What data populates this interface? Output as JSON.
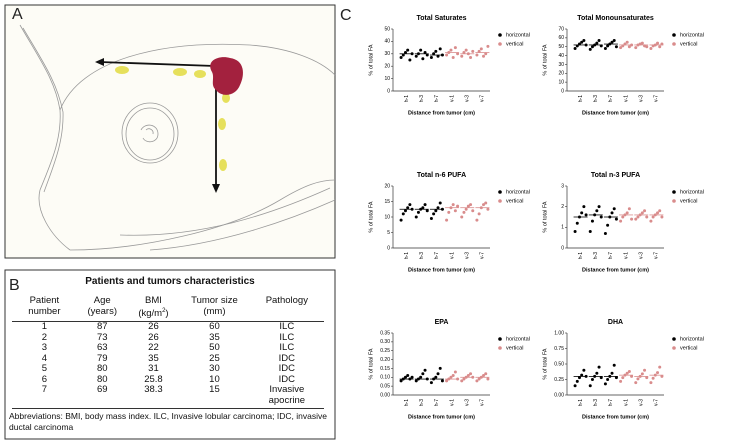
{
  "panel_labels": {
    "a": "A",
    "b": "B",
    "c": "C"
  },
  "table": {
    "title": "Patients and tumors characteristics",
    "header": [
      "Patient number",
      "Age (years)",
      {
        "text": "BMI (kg/m",
        "sup": "2",
        "after": ")"
      },
      "Tumor size (mm)",
      "Pathology"
    ],
    "rows": [
      [
        "1",
        "87",
        "26",
        "60",
        "ILC"
      ],
      [
        "2",
        "73",
        "26",
        "35",
        "ILC"
      ],
      [
        "3",
        "63",
        "22",
        "50",
        "ILC"
      ],
      [
        "4",
        "79",
        "35",
        "25",
        "IDC"
      ],
      [
        "5",
        "80",
        "31",
        "30",
        "IDC"
      ],
      [
        "6",
        "80",
        "25.8",
        "10",
        "IDC"
      ],
      [
        "7",
        "69",
        "38.3",
        "15",
        "Invasive apocrine"
      ]
    ],
    "footnote": "Abbreviations: BMI, body mass index. ILC, Invasive lobular carcinoma; IDC, invasive ductal carcinoma"
  },
  "chart_data": [
    {
      "type": "dot",
      "title": "Total Saturates",
      "x_label": "Distance from tumor (cm)",
      "y_label": "% of total FA",
      "categories": [
        "h-1",
        "h-3",
        "h-7",
        "v-1",
        "v-3",
        "v-7"
      ],
      "ylim": [
        0,
        50
      ],
      "yticks": [
        0,
        10,
        20,
        30,
        40,
        50
      ],
      "series": [
        {
          "name": "horizontal",
          "color": "#000000",
          "values": [
            [
              27,
              29,
              31,
              33,
              25,
              30
            ],
            [
              28,
              30,
              33,
              26,
              31,
              29
            ],
            [
              27,
              30,
              32,
              28,
              34,
              29
            ],
            null,
            null,
            null
          ],
          "medians": [
            30,
            30,
            29,
            null,
            null,
            null
          ]
        },
        {
          "name": "vertical",
          "color": "#d98c8c",
          "values": [
            null,
            null,
            null,
            [
              29,
              31,
              33,
              27,
              35,
              30
            ],
            [
              28,
              31,
              33,
              30,
              27,
              32
            ],
            [
              29,
              32,
              34,
              28,
              30,
              36
            ]
          ],
          "medians": [
            null,
            null,
            null,
            31,
            30,
            31
          ]
        }
      ]
    },
    {
      "type": "dot",
      "title": "Total Monounsaturates",
      "x_label": "Distance from tumor (cm)",
      "y_label": "% of total FA",
      "categories": [
        "h-1",
        "h-3",
        "h-7",
        "v-1",
        "v-3",
        "v-7"
      ],
      "ylim": [
        0,
        70
      ],
      "yticks": [
        0,
        10,
        20,
        30,
        40,
        50,
        60,
        70
      ],
      "series": [
        {
          "name": "horizontal",
          "color": "#000000",
          "values": [
            [
              48,
              51,
              53,
              55,
              57,
              52
            ],
            [
              47,
              50,
              52,
              54,
              57,
              51
            ],
            [
              48,
              51,
              53,
              55,
              57,
              50
            ],
            null,
            null,
            null
          ],
          "medians": [
            52,
            52,
            53,
            null,
            null,
            null
          ]
        },
        {
          "name": "vertical",
          "color": "#d98c8c",
          "values": [
            null,
            null,
            null,
            [
              49,
              51,
              53,
              55,
              50,
              52
            ],
            [
              49,
              52,
              53,
              54,
              51,
              50
            ],
            [
              48,
              51,
              52,
              54,
              50,
              53
            ]
          ],
          "medians": [
            null,
            null,
            null,
            52,
            52,
            52
          ]
        }
      ]
    },
    {
      "type": "dot",
      "title": "Total n-6 PUFA",
      "x_label": "Distance from tumor (cm)",
      "y_label": "% of total FA",
      "categories": [
        "h-1",
        "h-3",
        "h-7",
        "v-1",
        "v-3",
        "v-7"
      ],
      "ylim": [
        0,
        20
      ],
      "yticks": [
        0,
        5,
        10,
        15,
        20
      ],
      "series": [
        {
          "name": "horizontal",
          "color": "#000000",
          "values": [
            [
              9,
              11,
              12,
              13,
              14,
              12.5
            ],
            [
              10,
              11.5,
              12.5,
              13,
              14,
              12
            ],
            [
              9.5,
              11,
              12,
              13,
              14.5,
              12.5
            ],
            null,
            null,
            null
          ],
          "medians": [
            12.5,
            12.5,
            12.5,
            null,
            null,
            null
          ]
        },
        {
          "name": "vertical",
          "color": "#d98c8c",
          "values": [
            null,
            null,
            null,
            [
              9,
              11.5,
              13,
              14,
              12,
              13.5
            ],
            [
              10,
              11.5,
              12.5,
              13.5,
              14,
              12
            ],
            [
              9,
              11,
              13,
              14,
              14.5,
              12.5
            ]
          ],
          "medians": [
            null,
            null,
            null,
            13,
            13,
            13
          ]
        }
      ]
    },
    {
      "type": "dot",
      "title": "Total n-3 PUFA",
      "x_label": "Distance from tumor (cm)",
      "y_label": "% of total FA",
      "categories": [
        "h-1",
        "h-3",
        "h-7",
        "v-1",
        "v-3",
        "v-7"
      ],
      "ylim": [
        0,
        3
      ],
      "yticks": [
        0,
        1,
        2,
        3
      ],
      "series": [
        {
          "name": "horizontal",
          "color": "#000000",
          "values": [
            [
              0.8,
              1.2,
              1.5,
              1.7,
              2.0,
              1.6
            ],
            [
              0.8,
              1.3,
              1.6,
              1.8,
              2.0,
              1.5
            ],
            [
              0.7,
              1.1,
              1.5,
              1.7,
              1.9,
              1.4
            ],
            null,
            null,
            null
          ],
          "medians": [
            1.5,
            1.6,
            1.5,
            null,
            null,
            null
          ]
        },
        {
          "name": "vertical",
          "color": "#d98c8c",
          "values": [
            null,
            null,
            null,
            [
              1.3,
              1.5,
              1.6,
              1.7,
              1.9,
              1.4
            ],
            [
              1.4,
              1.5,
              1.6,
              1.7,
              1.8,
              1.5
            ],
            [
              1.3,
              1.5,
              1.6,
              1.7,
              1.8,
              1.5
            ]
          ],
          "medians": [
            null,
            null,
            null,
            1.6,
            1.6,
            1.6
          ]
        }
      ]
    },
    {
      "type": "dot",
      "title": "EPA",
      "x_label": "Distance from tumor (cm)",
      "y_label": "% of total FA",
      "categories": [
        "h-1",
        "h-3",
        "h-7",
        "v-1",
        "v-3",
        "v-7"
      ],
      "ylim": [
        0,
        0.35
      ],
      "yticks": [
        {
          "value": 0,
          "label": "0.00"
        },
        0.05,
        {
          "value": 0.1,
          "label": "0.10"
        },
        0.15,
        {
          "value": 0.2,
          "label": "0.20"
        },
        0.25,
        {
          "value": 0.3,
          "label": "0.30"
        },
        0.35
      ],
      "series": [
        {
          "name": "horizontal",
          "color": "#000000",
          "values": [
            [
              0.08,
              0.09,
              0.1,
              0.11,
              0.09,
              0.1
            ],
            [
              0.08,
              0.09,
              0.1,
              0.12,
              0.14,
              0.09
            ],
            [
              0.07,
              0.09,
              0.1,
              0.12,
              0.15,
              0.08
            ],
            null,
            null,
            null
          ],
          "medians": [
            0.09,
            0.09,
            0.09,
            null,
            null,
            null
          ]
        },
        {
          "name": "vertical",
          "color": "#d98c8c",
          "values": [
            null,
            null,
            null,
            [
              0.08,
              0.09,
              0.1,
              0.11,
              0.13,
              0.09
            ],
            [
              0.08,
              0.09,
              0.1,
              0.11,
              0.12,
              0.1
            ],
            [
              0.08,
              0.09,
              0.1,
              0.11,
              0.12,
              0.09
            ]
          ],
          "medians": [
            null,
            null,
            null,
            0.09,
            0.1,
            0.1
          ]
        }
      ]
    },
    {
      "type": "dot",
      "title": "DHA",
      "x_label": "Distance from tumor (cm)",
      "y_label": "% of total FA",
      "categories": [
        "h-1",
        "h-3",
        "h-7",
        "v-1",
        "v-3",
        "v-7"
      ],
      "ylim": [
        0,
        1
      ],
      "yticks": [
        {
          "value": 0,
          "label": "0.00"
        },
        0.25,
        {
          "value": 0.5,
          "label": "0.50"
        },
        0.75,
        {
          "value": 1,
          "label": "1.00"
        }
      ],
      "series": [
        {
          "name": "horizontal",
          "color": "#000000",
          "values": [
            [
              0.15,
              0.22,
              0.28,
              0.32,
              0.4,
              0.3
            ],
            [
              0.15,
              0.25,
              0.3,
              0.35,
              0.45,
              0.28
            ],
            [
              0.18,
              0.25,
              0.3,
              0.35,
              0.48,
              0.28
            ],
            null,
            null,
            null
          ],
          "medians": [
            0.3,
            0.3,
            0.3,
            null,
            null,
            null
          ]
        },
        {
          "name": "vertical",
          "color": "#d98c8c",
          "values": [
            null,
            null,
            null,
            [
              0.22,
              0.28,
              0.32,
              0.35,
              0.38,
              0.3
            ],
            [
              0.2,
              0.26,
              0.3,
              0.34,
              0.4,
              0.28
            ],
            [
              0.2,
              0.27,
              0.32,
              0.36,
              0.45,
              0.3
            ]
          ],
          "medians": [
            null,
            null,
            null,
            0.32,
            0.3,
            0.32
          ]
        }
      ]
    }
  ]
}
